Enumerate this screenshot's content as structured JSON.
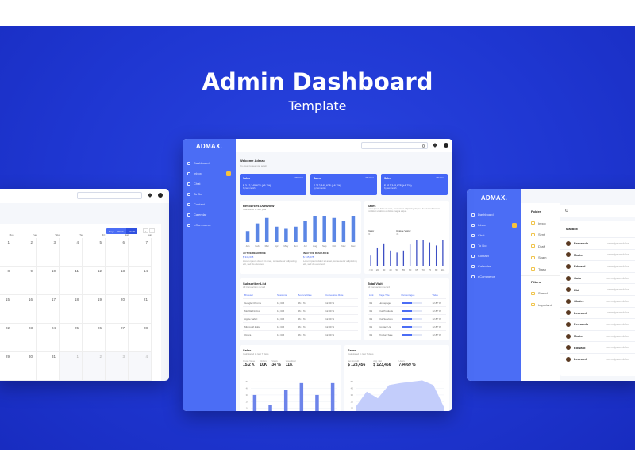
{
  "hero": {
    "title": "Admin Dashboard",
    "subtitle": "Template"
  },
  "colors": {
    "primary": "#4b6df5",
    "background": "#1f37d2",
    "badge": "#f7c23b",
    "area": "#c3cdfb"
  },
  "sidebar": {
    "logo": "ADMAX.",
    "items": [
      {
        "label": "Dashboard",
        "icon": "grid-icon"
      },
      {
        "label": "Inbox",
        "icon": "inbox-icon",
        "badge": true
      },
      {
        "label": "Chat",
        "icon": "chat-icon"
      },
      {
        "label": "To Do",
        "icon": "todo-icon"
      },
      {
        "label": "Contact",
        "icon": "contact-icon"
      },
      {
        "label": "Calendar",
        "icon": "calendar-icon"
      },
      {
        "label": "eCommerce",
        "icon": "cart-icon"
      }
    ]
  },
  "dashboard": {
    "welcome": "Welcome Admax",
    "welcome_sub": "It's great to see you again",
    "stats": [
      {
        "title": "Sales",
        "tag": "371 View",
        "value": "$ 3 / 2,345,678 (+6.7%)",
        "sub": "by last month"
      },
      {
        "title": "Sales",
        "tag": "371 View",
        "value": "$ 712,345,678 (+6.7%)",
        "sub": "by last month"
      },
      {
        "title": "Sales",
        "tag": "371 View",
        "value": "$ 313,345,678 (+6.7%)",
        "sub": "by last month"
      }
    ],
    "resources": {
      "title": "Resources Overview",
      "sub": "Calculated in last year",
      "active_label": "ACTIVE RESOURCE",
      "active_value": "$ 345,678",
      "inactive_label": "INACTIVE RESOURCE",
      "inactive_value": "$ 345,678",
      "desc": "Lorem ipsum dolor sit amet, consectetur adipiscing elit, sed do eiusmod"
    },
    "sales": {
      "title": "Sales",
      "desc": "Lorem ipsum dolor sit amet, consectetur adipiscing elit, sed do eiusmod tempor incididunt ut labore et dolore magna aliqua.",
      "visitor_label": "Visitor",
      "visitor_value": "33",
      "unique_label": "Unique Visitor",
      "unique_value": "45"
    },
    "subscriber": {
      "title": "Subscriber List",
      "sub": "All transaction record",
      "columns": [
        "Browser",
        "Sessions",
        "Bounce Rate",
        "Conversion Rate"
      ],
      "rows": [
        [
          "Google Chrome",
          "12,345",
          "46.1 %",
          "12.50 %"
        ],
        [
          "Mozilla Firefox",
          "12,345",
          "46.1 %",
          "12.50 %"
        ],
        [
          "Apple Safari",
          "12,345",
          "46.1 %",
          "12.50 %"
        ],
        [
          "Microsoft Edge",
          "12,345",
          "46.1 %",
          "12.50 %"
        ],
        [
          "Opera",
          "12,345",
          "46.1 %",
          "12.50 %"
        ]
      ]
    },
    "visit": {
      "title": "Total Visit",
      "sub": "All transaction record",
      "columns": [
        "Link",
        "Page Title",
        "Percentages",
        "Value"
      ],
      "rows": [
        [
          "/01",
          "Homepage",
          50,
          "12.87 %"
        ],
        [
          "/01",
          "Our Products",
          50,
          "12.87 %"
        ],
        [
          "/01",
          "Our Services",
          50,
          "12.87 %"
        ],
        [
          "/01",
          "Contact Us",
          50,
          "12.87 %"
        ],
        [
          "/01",
          "Product Sale",
          50,
          "12.87 %"
        ]
      ]
    },
    "sales_bottom_1": {
      "title": "Sales",
      "sub": "Calculated in last 7 days",
      "kpis": [
        [
          "Gross Value",
          "15.2 K"
        ],
        [
          "Orders",
          "10K"
        ],
        [
          "Views",
          "34 %"
        ],
        [
          "Visualized",
          "11K"
        ]
      ]
    },
    "sales_bottom_2": {
      "title": "Sales",
      "sub": "Calculated in last 7 days",
      "kpis": [
        [
          "Net Growth",
          "$ 123,456"
        ],
        [
          "Avg. Net",
          "$ 123,456"
        ],
        [
          "Users",
          "734.69 %"
        ]
      ]
    }
  },
  "chart_data": [
    {
      "type": "bar",
      "categories": [
        "Jan",
        "Feb",
        "Mar",
        "Apr",
        "May",
        "Jun",
        "Jul",
        "Aug",
        "Sep",
        "Oct",
        "Nov",
        "Dec"
      ],
      "values": [
        10,
        17,
        22,
        14,
        12,
        14,
        19,
        24,
        24,
        22,
        19,
        24
      ]
    },
    {
      "type": "bar",
      "categories": [
        "<10",
        "20",
        "30",
        "40",
        "50",
        "55",
        "60",
        "65",
        "70",
        "75",
        "80",
        "90+"
      ],
      "values": [
        10,
        18,
        22,
        15,
        13,
        15,
        21,
        25,
        25,
        23,
        20,
        25
      ]
    },
    {
      "type": "bar",
      "yticks": [
        10,
        20,
        30,
        40,
        50
      ],
      "values": [
        30,
        0,
        15,
        0,
        38,
        0,
        48,
        0,
        30,
        0,
        48
      ],
      "ylim": [
        0,
        55
      ]
    },
    {
      "type": "area",
      "yticks": [
        10,
        20,
        30,
        40,
        50
      ],
      "values": [
        12,
        35,
        25,
        45,
        48,
        50,
        52,
        45,
        10
      ],
      "ylim": [
        0,
        55
      ]
    }
  ],
  "calendar": {
    "view_buttons": [
      "Day",
      "Week",
      "Month"
    ],
    "weekdays": [
      "Mon",
      "Tue",
      "Wed",
      "Thu",
      "Fri",
      "Sat",
      "Sun"
    ],
    "rows": [
      [
        "1",
        "2",
        "3",
        "4",
        "5",
        "6",
        "7"
      ],
      [
        "8",
        "9",
        "10",
        "11",
        "12",
        "13",
        "14"
      ],
      [
        "15",
        "16",
        "17",
        "18",
        "19",
        "20",
        "21"
      ],
      [
        "22",
        "23",
        "24",
        "25",
        "26",
        "27",
        "28"
      ],
      [
        "29",
        "30",
        "31",
        "1",
        "2",
        "3",
        "4"
      ]
    ]
  },
  "mail": {
    "folder_title": "Folder",
    "folders": [
      "Inbox",
      "Sent",
      "Draft",
      "Spam",
      "Trash"
    ],
    "filter_title": "Filters",
    "filters": [
      "Stared",
      "Important"
    ],
    "mailbox_title": "Mailbox",
    "senders": [
      "Fernando",
      "Mario",
      "Edward",
      "Gato",
      "Kid",
      "Okairs",
      "Leonard",
      "Fernando",
      "Mario",
      "Edward",
      "Leonard"
    ],
    "preview": "Lorem ipsum dolor"
  }
}
